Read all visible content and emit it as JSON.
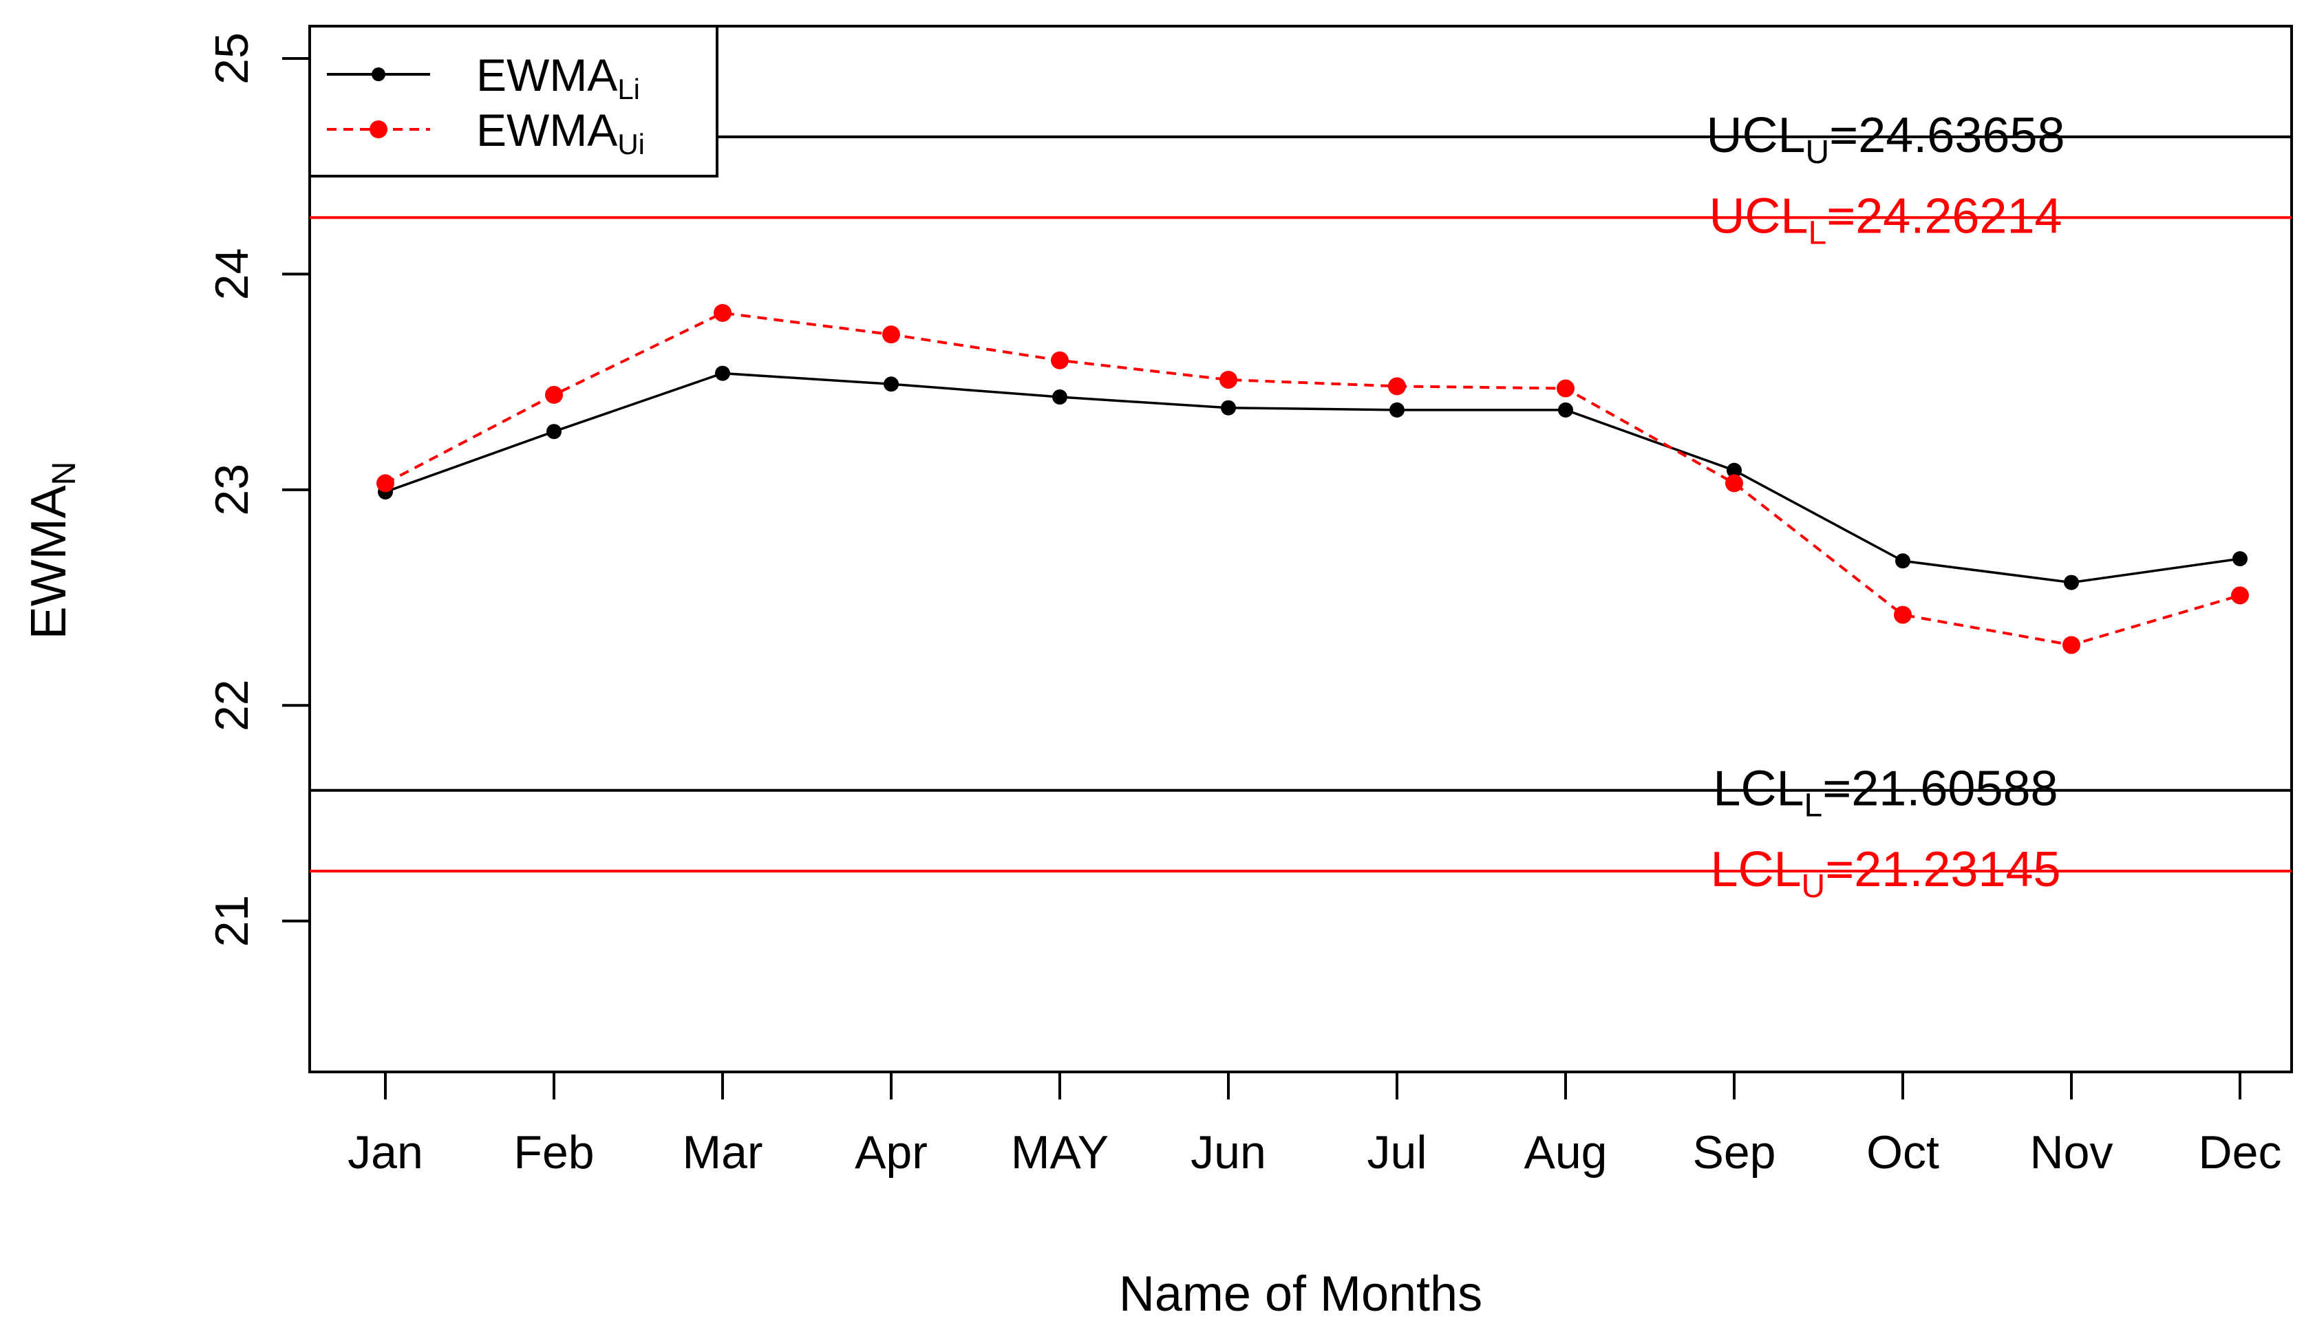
{
  "chart_data": {
    "type": "line",
    "xlabel": "Name of Months",
    "ylabel": {
      "base": "EWMA",
      "sub": "N"
    },
    "categories": [
      "Jan",
      "Feb",
      "Mar",
      "Apr",
      "MAY",
      "Jun",
      "Jul",
      "Aug",
      "Sep",
      "Oct",
      "Nov",
      "Dec"
    ],
    "ylim": [
      20.3,
      25.15
    ],
    "yticks": [
      "21",
      "22",
      "23",
      "24",
      "25"
    ],
    "series": [
      {
        "name": "EWMA_Li",
        "label_base": "EWMA",
        "label_sub": "Li",
        "color": "#000000",
        "style": "solid",
        "values": [
          22.99,
          23.27,
          23.54,
          23.49,
          23.43,
          23.38,
          23.37,
          23.37,
          23.09,
          22.67,
          22.57,
          22.68
        ]
      },
      {
        "name": "EWMA_Ui",
        "label_base": "EWMA",
        "label_sub": "Ui",
        "color": "#ff0000",
        "style": "dashed",
        "values": [
          23.03,
          23.44,
          23.82,
          23.72,
          23.6,
          23.51,
          23.48,
          23.47,
          23.03,
          22.42,
          22.28,
          22.51
        ]
      }
    ],
    "control_lines": [
      {
        "name": "UCL_U",
        "base": "UCL",
        "sub": "U",
        "value_text": "=24.63658",
        "value": 24.63658,
        "color": "#000000"
      },
      {
        "name": "UCL_L",
        "base": "UCL",
        "sub": "L",
        "value_text": "=24.26214",
        "value": 24.26214,
        "color": "#ff0000"
      },
      {
        "name": "LCL_L",
        "base": "LCL",
        "sub": "L",
        "value_text": "=21.60588",
        "value": 21.60588,
        "color": "#000000"
      },
      {
        "name": "LCL_U",
        "base": "LCL",
        "sub": "U",
        "value_text": "=21.23145",
        "value": 21.23145,
        "color": "#ff0000"
      }
    ],
    "legend_position": "top-left"
  }
}
